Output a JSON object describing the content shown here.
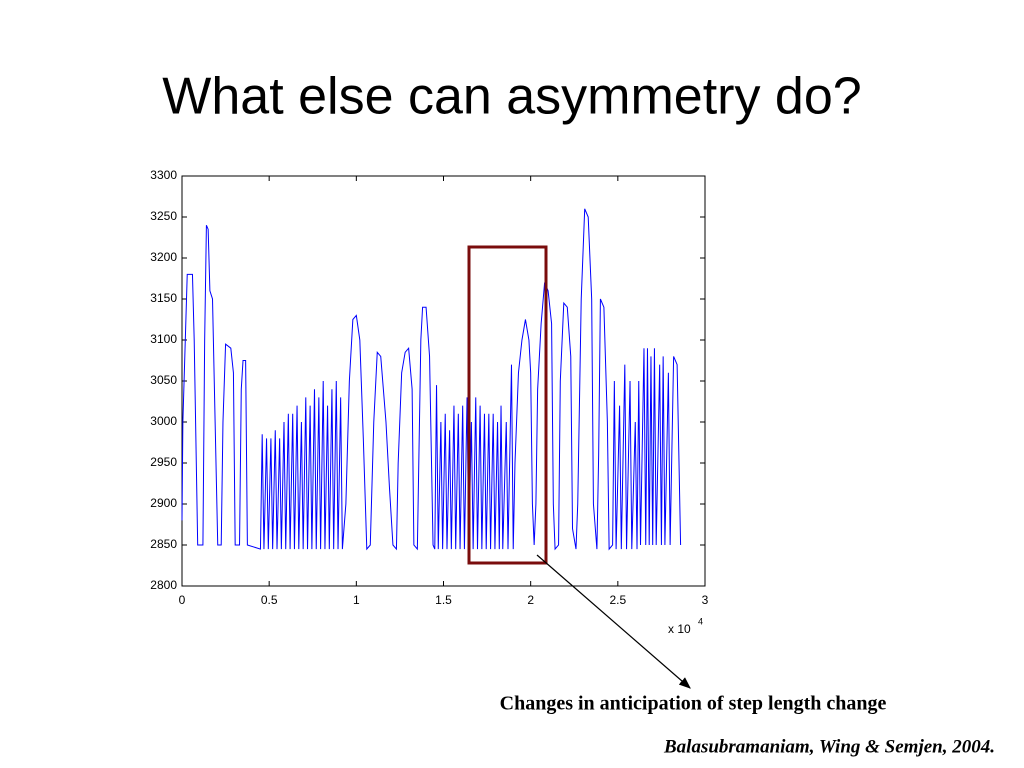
{
  "title": "What else can asymmetry do?",
  "chart_data": {
    "type": "line",
    "x": [
      0,
      50,
      300,
      600,
      700,
      900,
      1200,
      1300,
      1400,
      1500,
      1600,
      1750,
      1900,
      2050,
      2250,
      2350,
      2500,
      2800,
      2950,
      3050,
      3300,
      3400,
      3500,
      3650,
      3750,
      4500,
      4600,
      4700,
      4850,
      4950,
      5100,
      5200,
      5350,
      5450,
      5600,
      5700,
      5850,
      5950,
      6100,
      6200,
      6350,
      6450,
      6600,
      6700,
      6850,
      6950,
      7100,
      7200,
      7350,
      7450,
      7600,
      7700,
      7850,
      7950,
      8100,
      8200,
      8350,
      8450,
      8600,
      8700,
      8850,
      8950,
      9100,
      9200,
      9400,
      9600,
      9800,
      10000,
      10200,
      10400,
      10600,
      10800,
      11000,
      11200,
      11400,
      11700,
      11900,
      12100,
      12300,
      12400,
      12600,
      12800,
      13000,
      13200,
      13300,
      13500,
      13700,
      13800,
      14000,
      14200,
      14400,
      14500,
      14600,
      14700,
      14850,
      14950,
      15100,
      15200,
      15350,
      15450,
      15600,
      15700,
      15850,
      15950,
      16100,
      16200,
      16350,
      16450,
      16600,
      16700,
      16850,
      16950,
      17100,
      17200,
      17350,
      17450,
      17600,
      17700,
      17850,
      17950,
      18100,
      18200,
      18300,
      18400,
      18600,
      18700,
      18900,
      19000,
      19100,
      19300,
      19500,
      19700,
      19900,
      20000,
      20100,
      20200,
      20300,
      20400,
      20600,
      20800,
      21000,
      21200,
      21300,
      21400,
      21600,
      21700,
      21900,
      22100,
      22300,
      22400,
      22600,
      22700,
      22900,
      23100,
      23300,
      23500,
      23600,
      23800,
      23900,
      24000,
      24200,
      24400,
      24500,
      24700,
      24800,
      24900,
      25100,
      25200,
      25400,
      25500,
      25700,
      25800,
      26000,
      26100,
      26200,
      26300,
      26500,
      26600,
      26700,
      26800,
      26900,
      27000,
      27100,
      27200,
      27400,
      27500,
      27600,
      27700,
      27900,
      28000,
      28200,
      28400,
      28600
    ],
    "series": [
      {
        "color": "#0000ff",
        "values": [
          2880,
          3000,
          3180,
          3180,
          3100,
          2850,
          2850,
          3100,
          3240,
          3235,
          3160,
          3150,
          3000,
          2850,
          2850,
          3000,
          3095,
          3090,
          3060,
          2850,
          2850,
          3040,
          3075,
          3075,
          2850,
          2845,
          2985,
          2845,
          2980,
          2845,
          2980,
          2845,
          2990,
          2845,
          2980,
          2845,
          3000,
          2845,
          3010,
          2845,
          3010,
          2845,
          3020,
          2845,
          3000,
          2845,
          3030,
          2845,
          3020,
          2845,
          3040,
          2845,
          3030,
          2845,
          3050,
          2845,
          3020,
          2845,
          3040,
          2845,
          3050,
          2845,
          3030,
          2845,
          2900,
          3050,
          3125,
          3130,
          3100,
          2980,
          2845,
          2850,
          3000,
          3085,
          3080,
          3000,
          2920,
          2850,
          2845,
          2950,
          3060,
          3085,
          3090,
          3040,
          2850,
          2845,
          3100,
          3140,
          3140,
          3080,
          2850,
          2845,
          3045,
          2845,
          3000,
          2845,
          3010,
          2845,
          2990,
          2845,
          3020,
          2845,
          3010,
          2845,
          3020,
          2845,
          3030,
          2845,
          3000,
          2845,
          3030,
          2845,
          3020,
          2845,
          3010,
          2845,
          3010,
          2845,
          3010,
          2845,
          3000,
          2845,
          3020,
          2845,
          3000,
          2845,
          3070,
          2845,
          2950,
          3060,
          3100,
          3125,
          3100,
          3060,
          2900,
          2850,
          2900,
          3040,
          3120,
          3170,
          3160,
          3120,
          2900,
          2845,
          2850,
          3050,
          3145,
          3140,
          3080,
          2870,
          2845,
          2900,
          3150,
          3260,
          3250,
          3150,
          2900,
          2845,
          2960,
          3150,
          3140,
          3000,
          2845,
          2850,
          3050,
          2845,
          3020,
          2845,
          3070,
          2845,
          3050,
          2845,
          3000,
          2845,
          3050,
          2850,
          3090,
          2850,
          3090,
          2850,
          3080,
          2850,
          3090,
          2850,
          3070,
          2850,
          3080,
          2850,
          3060,
          2850,
          3080,
          3070,
          2850
        ]
      }
    ],
    "xlim": [
      0,
      30000
    ],
    "ylim": [
      2800,
      3300
    ],
    "xticks": [
      0,
      {
        "value": 5000,
        "label": "0.5"
      },
      {
        "value": 10000,
        "label": "1"
      },
      {
        "value": 15000,
        "label": "1.5"
      },
      {
        "value": 20000,
        "label": "2"
      },
      {
        "value": 25000,
        "label": "2.5"
      },
      {
        "value": 30000,
        "label": "3"
      }
    ],
    "yticks": [
      2800,
      2850,
      2900,
      2950,
      3000,
      3050,
      3100,
      3150,
      3200,
      3250,
      3300
    ],
    "x_multiplier": {
      "base": "x 10",
      "exponent": "4"
    }
  },
  "annotation": "Changes in anticipation of step length change",
  "citation": "Balasubramaniam, Wing & Semjen, 2004."
}
